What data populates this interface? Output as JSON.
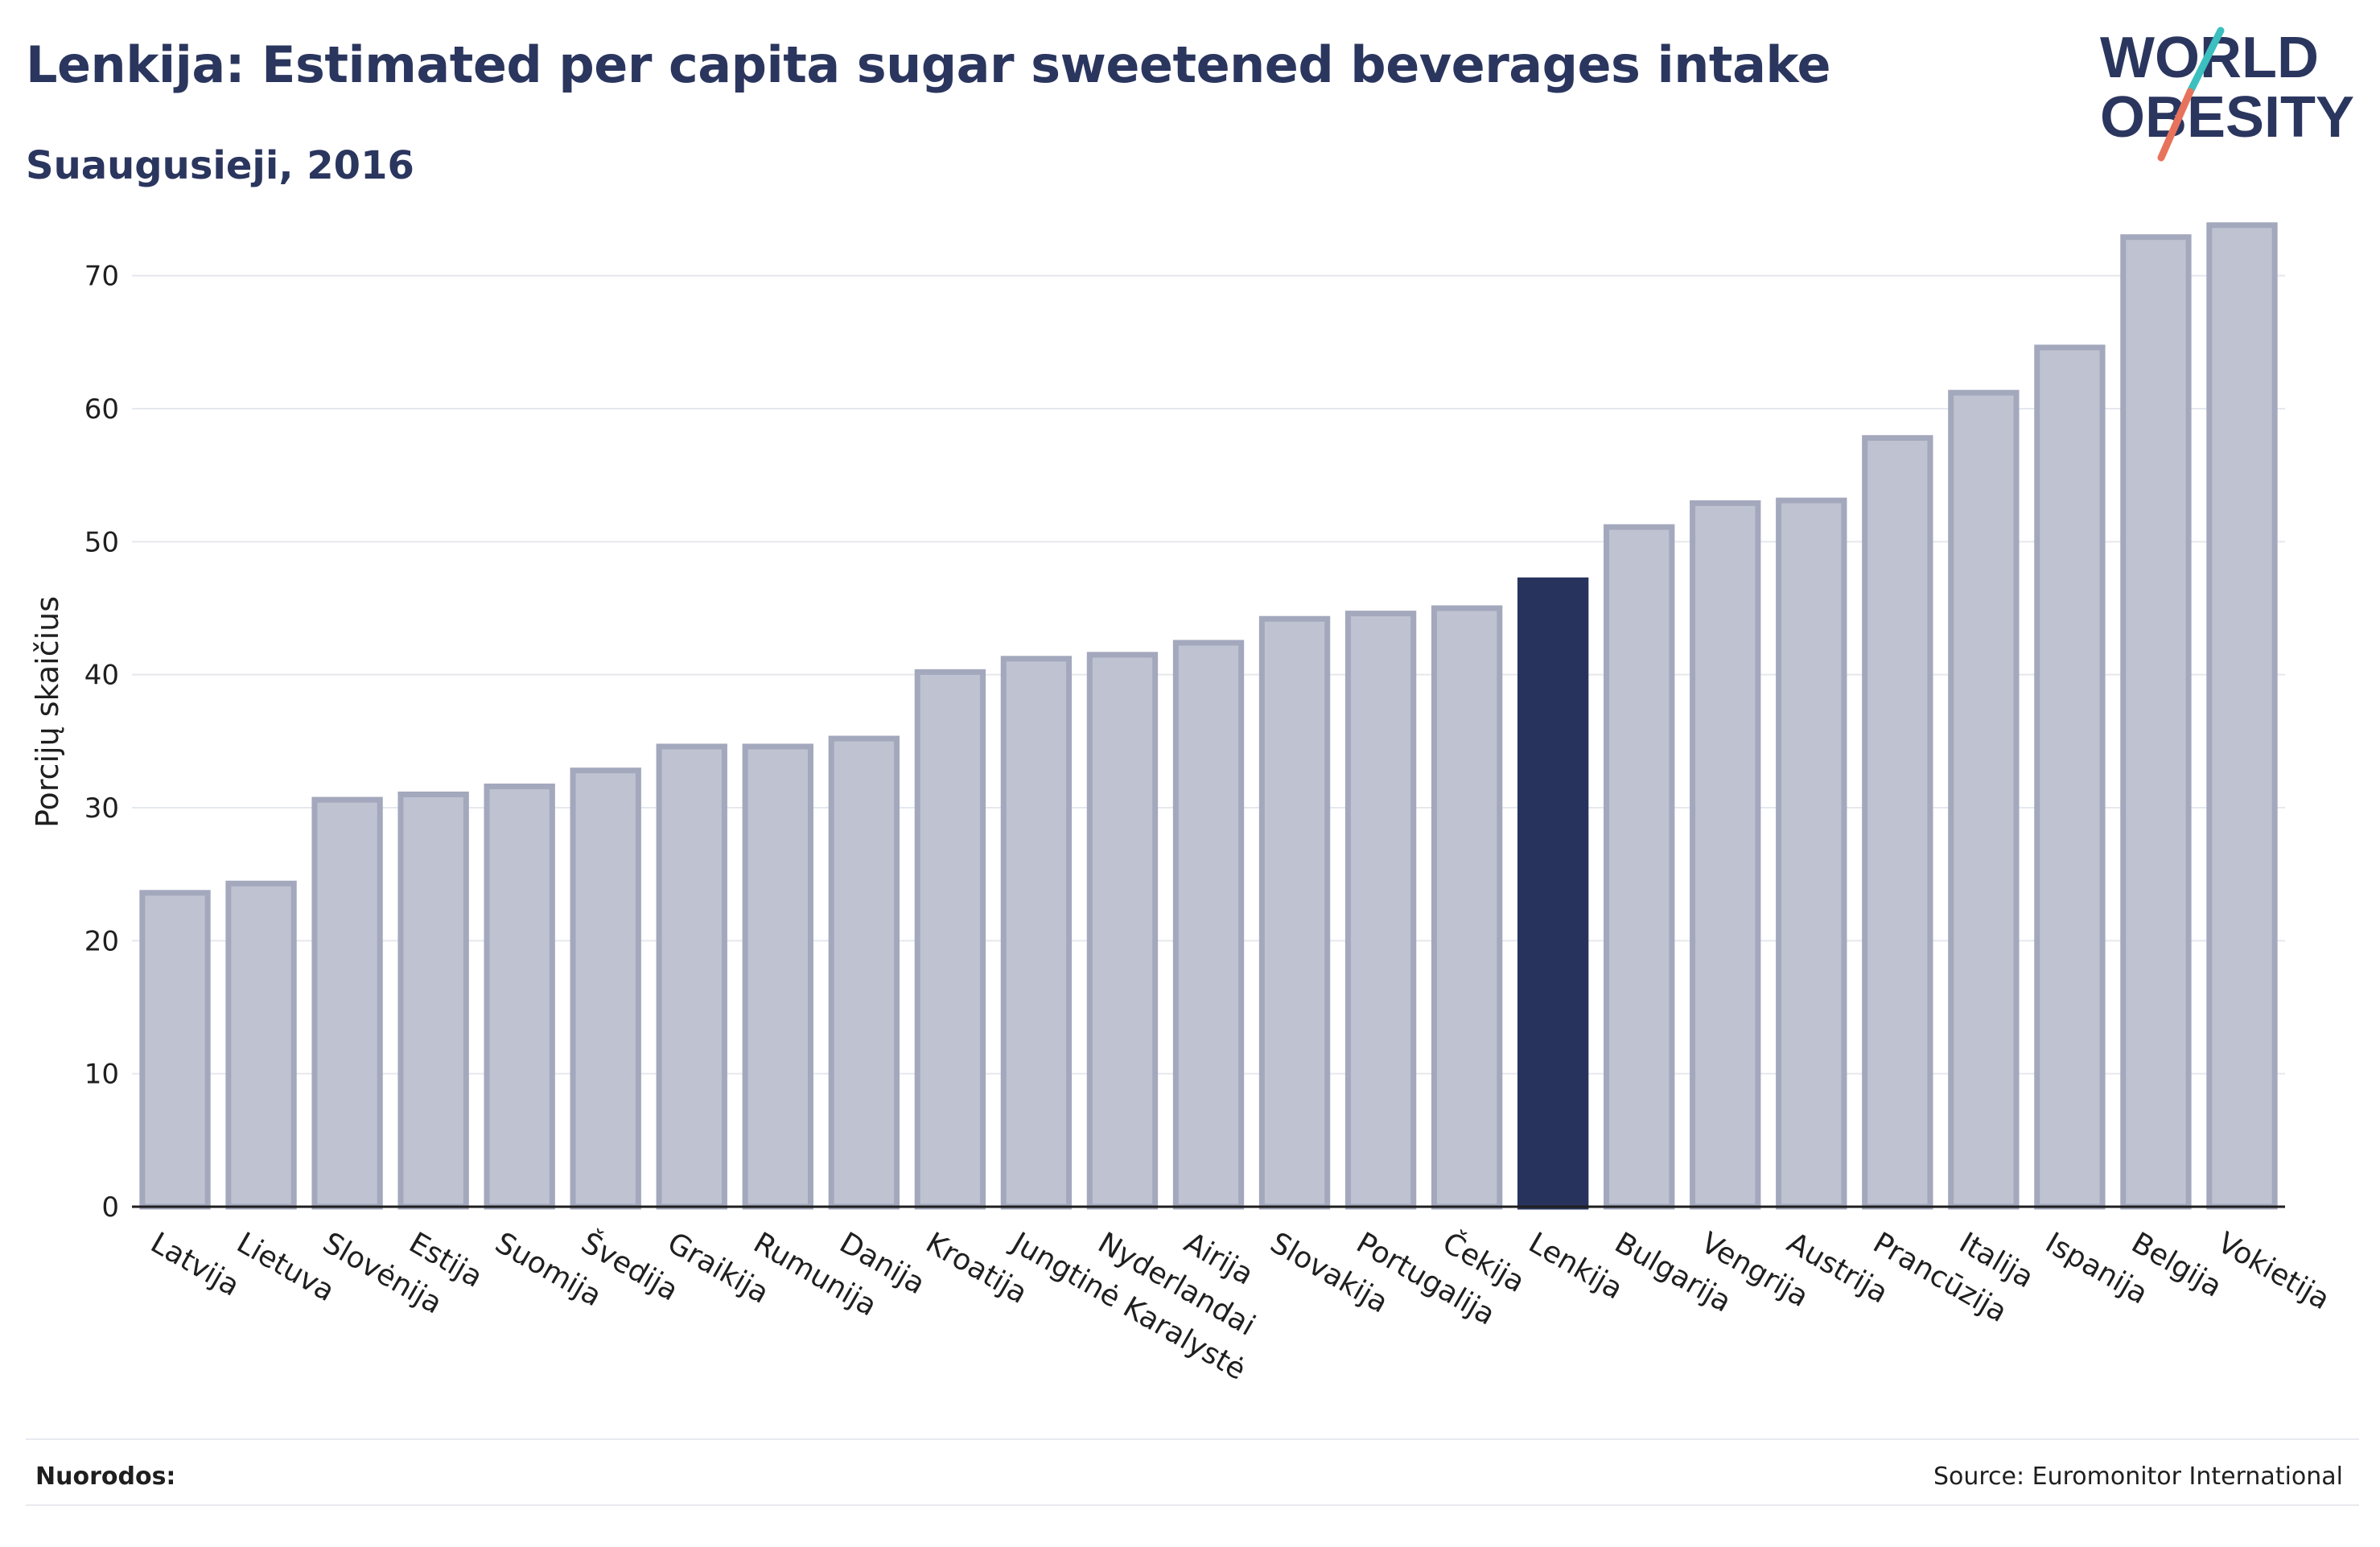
{
  "header": {
    "title": "Lenkija: Estimated per capita sugar sweetened beverages intake",
    "subtitle": "Suaugusieji, 2016"
  },
  "logo": {
    "line1": "WORLD",
    "line2": "OBESITY",
    "colors": {
      "text": "#2b365f",
      "slash_top": "#3bbfbf",
      "slash_bottom": "#e8735c"
    }
  },
  "footer": {
    "refs_label": "Nuorodos:",
    "source": "Source: Euromonitor International"
  },
  "colors": {
    "bar_default": "#bfc2d0",
    "bar_default_stroke": "#a3a8bd",
    "bar_highlight": "#28335d",
    "grid": "#e6e8ee",
    "axis": "#1f1f1f"
  },
  "chart_data": {
    "type": "bar",
    "title": "Lenkija: Estimated per capita sugar sweetened beverages intake",
    "subtitle": "Suaugusieji, 2016",
    "xlabel": "",
    "ylabel": "Porcijų skaičius",
    "ylim": [
      0,
      75
    ],
    "yticks": [
      0,
      10,
      20,
      30,
      40,
      50,
      60,
      70
    ],
    "grid": true,
    "highlight": "Lenkija",
    "categories": [
      "Latvija",
      "Lietuva",
      "Slovėnija",
      "Estija",
      "Suomija",
      "Švedija",
      "Graikija",
      "Rumunija",
      "Danija",
      "Kroatija",
      "Jungtinė Karalystė",
      "Nyderlandai",
      "Airija",
      "Slovakija",
      "Portugalija",
      "Čekija",
      "Lenkija",
      "Bulgarija",
      "Vengrija",
      "Austrija",
      "Prancūzija",
      "Italija",
      "Ispanija",
      "Belgija",
      "Vokietija"
    ],
    "values": [
      23.6,
      24.3,
      30.6,
      31.0,
      31.6,
      32.8,
      34.6,
      34.6,
      35.2,
      40.2,
      41.2,
      41.5,
      42.4,
      44.2,
      44.6,
      45.0,
      47.1,
      51.1,
      52.9,
      53.1,
      57.8,
      61.2,
      64.6,
      72.9,
      73.8
    ]
  }
}
